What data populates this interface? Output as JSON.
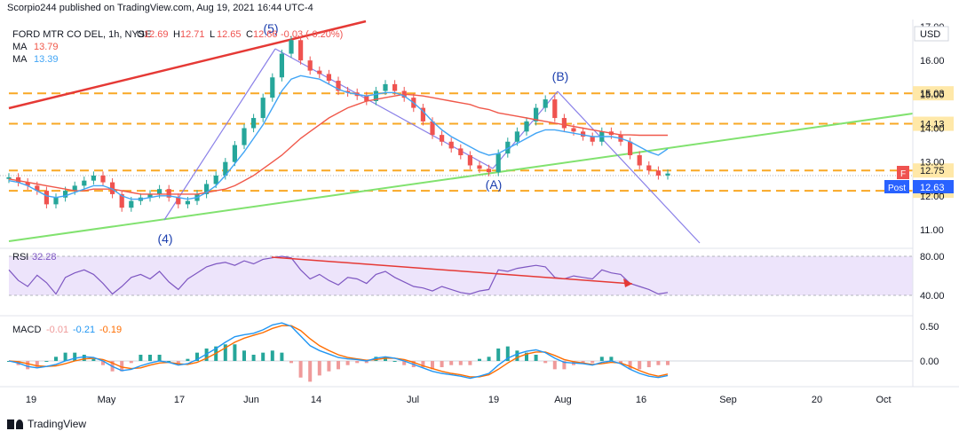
{
  "header": {
    "published": "Scorpio244 published on TradingView.com, Aug 19, 2021 16:44 UTC-4"
  },
  "legend": {
    "symbol": "FORD MTR CO DEL, 1h, NYSE",
    "ohlc": [
      {
        "k": "O",
        "v": "12.69"
      },
      {
        "k": "H",
        "v": "12.71"
      },
      {
        "k": "L",
        "v": "12.65"
      },
      {
        "k": "C",
        "v": "12.66"
      }
    ],
    "change": "-0.03 (-0.20%)",
    "ma1_label": "MA",
    "ma1_value": "13.79",
    "ma2_label": "MA",
    "ma2_value": "13.39"
  },
  "currency": "USD",
  "brand": "TradingView",
  "colors": {
    "up": "#26a69a",
    "down": "#ef5350",
    "ma_red": "#f0584a",
    "ma_blue": "#42a5f5",
    "level": "#f9a825",
    "trend_green": "#81e26f",
    "trend_red": "#e53935",
    "pattern": "#8a80e8",
    "rsi": "#7e57c2",
    "macd": "#2196f3",
    "signal": "#ff6d00"
  },
  "chart_data": [
    {
      "type": "line",
      "name": "price",
      "ylim": [
        10.8,
        17.0
      ],
      "x_ticks": [
        "19",
        "May",
        "17",
        "Jun",
        "14",
        "Jul",
        "19",
        "Aug",
        "16",
        "Sep",
        "20",
        "Oct"
      ],
      "y_ticks": [
        "17.00",
        "16.00",
        "15.00",
        "14.00",
        "13.00",
        "12.00",
        "11.00"
      ],
      "candles_close": [
        12.55,
        12.4,
        12.3,
        12.15,
        11.75,
        11.95,
        12.15,
        12.3,
        12.45,
        12.6,
        12.4,
        12.05,
        11.65,
        11.85,
        11.95,
        12.05,
        12.2,
        11.95,
        11.75,
        11.85,
        12.05,
        12.35,
        12.6,
        13.0,
        13.5,
        14.0,
        14.3,
        14.9,
        15.5,
        16.2,
        16.6,
        16.0,
        15.7,
        15.6,
        15.4,
        15.1,
        15.05,
        14.95,
        14.8,
        15.1,
        15.3,
        15.1,
        14.9,
        14.6,
        14.2,
        13.8,
        13.6,
        13.4,
        13.2,
        12.9,
        12.8,
        12.7,
        13.25,
        13.6,
        13.9,
        14.2,
        14.6,
        14.85,
        14.3,
        14.0,
        13.9,
        13.75,
        13.6,
        13.9,
        13.8,
        13.6,
        13.2,
        12.9,
        12.75,
        12.6,
        12.66
      ],
      "ma_fast": [
        12.45,
        12.4,
        12.3,
        12.15,
        12.0,
        11.95,
        12.0,
        12.1,
        12.2,
        12.3,
        12.3,
        12.2,
        12.0,
        11.9,
        11.9,
        11.95,
        12.0,
        12.0,
        11.95,
        11.9,
        11.95,
        12.1,
        12.3,
        12.6,
        12.95,
        13.3,
        13.7,
        14.1,
        14.6,
        15.1,
        15.45,
        15.55,
        15.5,
        15.45,
        15.3,
        15.15,
        15.05,
        15.0,
        14.95,
        15.0,
        15.05,
        15.05,
        14.95,
        14.75,
        14.5,
        14.2,
        13.95,
        13.75,
        13.6,
        13.45,
        13.3,
        13.2,
        13.25,
        13.4,
        13.55,
        13.7,
        13.85,
        13.95,
        13.95,
        13.9,
        13.85,
        13.8,
        13.75,
        13.75,
        13.75,
        13.7,
        13.6,
        13.45,
        13.3,
        13.2,
        13.39
      ],
      "ma_slow": [
        12.5,
        12.45,
        12.4,
        12.35,
        12.3,
        12.25,
        12.2,
        12.15,
        12.15,
        12.2,
        12.2,
        12.2,
        12.15,
        12.1,
        12.05,
        12.05,
        12.05,
        12.05,
        12.05,
        12.05,
        12.05,
        12.1,
        12.15,
        12.2,
        12.3,
        12.45,
        12.6,
        12.8,
        13.0,
        13.2,
        13.45,
        13.7,
        13.9,
        14.1,
        14.3,
        14.45,
        14.6,
        14.7,
        14.8,
        14.85,
        14.9,
        14.95,
        15.0,
        14.98,
        14.95,
        14.9,
        14.85,
        14.8,
        14.75,
        14.7,
        14.6,
        14.55,
        14.45,
        14.4,
        14.35,
        14.3,
        14.25,
        14.2,
        14.15,
        14.1,
        14.05,
        14.0,
        13.95,
        13.9,
        13.85,
        13.8,
        13.8,
        13.79,
        13.79,
        13.79,
        13.79
      ],
      "levels": [
        15.03,
        14.13,
        12.75,
        12.15
      ],
      "price_tag": "12.63",
      "post_label": "Post",
      "flag": "F",
      "wave_labels": [
        "(5)",
        "(4)",
        "(A)",
        "(B)"
      ]
    },
    {
      "type": "line",
      "name": "RSI",
      "label": "RSI",
      "value": "32.28",
      "ylim": [
        0,
        100
      ],
      "y_ticks": [
        "80.00",
        "40.00"
      ],
      "values": [
        62,
        48,
        40,
        55,
        45,
        30,
        52,
        58,
        62,
        56,
        44,
        30,
        40,
        52,
        56,
        50,
        60,
        46,
        36,
        50,
        58,
        66,
        70,
        72,
        68,
        74,
        70,
        76,
        78,
        80,
        78,
        62,
        50,
        56,
        48,
        42,
        52,
        50,
        44,
        56,
        60,
        52,
        46,
        40,
        38,
        34,
        40,
        36,
        32,
        30,
        34,
        36,
        62,
        60,
        64,
        66,
        68,
        66,
        52,
        50,
        54,
        52,
        50,
        62,
        58,
        56,
        44,
        40,
        36,
        30,
        32
      ]
    },
    {
      "type": "line",
      "name": "MACD",
      "label": "MACD",
      "values_text": [
        "-0.01",
        "-0.21",
        "-0.19"
      ],
      "ylim": [
        -0.4,
        0.7
      ],
      "y_ticks": [
        "0.50",
        "0.00"
      ],
      "macd": [
        0.0,
        -0.03,
        -0.08,
        -0.1,
        -0.08,
        -0.05,
        0.0,
        0.04,
        0.06,
        0.05,
        0.0,
        -0.08,
        -0.14,
        -0.12,
        -0.07,
        -0.03,
        0.0,
        -0.02,
        -0.06,
        -0.04,
        0.02,
        0.1,
        0.18,
        0.27,
        0.35,
        0.38,
        0.4,
        0.45,
        0.52,
        0.55,
        0.5,
        0.36,
        0.22,
        0.15,
        0.1,
        0.05,
        0.03,
        0.02,
        0.0,
        0.04,
        0.06,
        0.04,
        0.0,
        -0.05,
        -0.1,
        -0.15,
        -0.18,
        -0.2,
        -0.22,
        -0.25,
        -0.22,
        -0.18,
        -0.06,
        0.04,
        0.1,
        0.14,
        0.16,
        0.12,
        0.04,
        -0.02,
        -0.03,
        -0.04,
        -0.06,
        -0.02,
        0.0,
        -0.04,
        -0.12,
        -0.18,
        -0.22,
        -0.24,
        -0.21
      ],
      "signal": [
        0.0,
        -0.01,
        -0.04,
        -0.07,
        -0.08,
        -0.07,
        -0.04,
        0.0,
        0.03,
        0.04,
        0.02,
        -0.03,
        -0.09,
        -0.11,
        -0.1,
        -0.06,
        -0.03,
        -0.02,
        -0.04,
        -0.05,
        -0.02,
        0.04,
        0.11,
        0.19,
        0.27,
        0.33,
        0.37,
        0.41,
        0.47,
        0.51,
        0.51,
        0.44,
        0.32,
        0.22,
        0.15,
        0.09,
        0.05,
        0.03,
        0.01,
        0.02,
        0.04,
        0.04,
        0.02,
        -0.02,
        -0.07,
        -0.11,
        -0.15,
        -0.18,
        -0.2,
        -0.23,
        -0.23,
        -0.2,
        -0.12,
        -0.03,
        0.05,
        0.1,
        0.13,
        0.13,
        0.08,
        0.02,
        -0.01,
        -0.03,
        -0.05,
        -0.04,
        -0.02,
        -0.03,
        -0.08,
        -0.14,
        -0.19,
        -0.22,
        -0.19
      ]
    }
  ]
}
